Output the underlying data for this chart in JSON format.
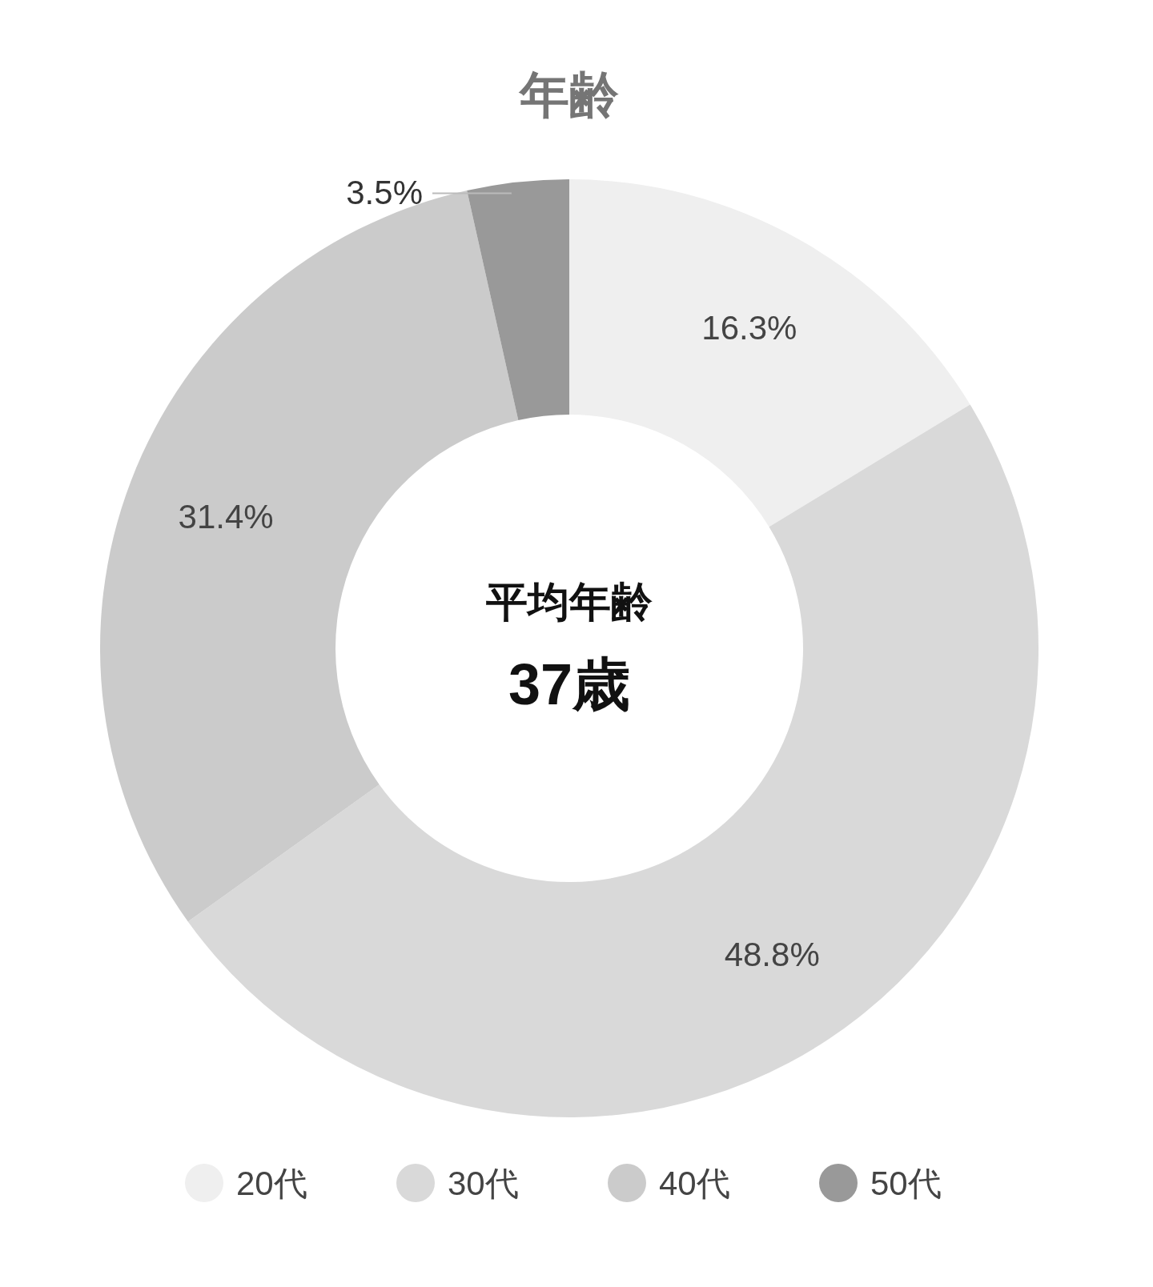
{
  "chart_data": {
    "type": "donut",
    "title": "年齢",
    "categories": [
      "20代",
      "30代",
      "40代",
      "50代"
    ],
    "values": [
      16.3,
      48.8,
      31.4,
      3.5
    ],
    "colors": [
      "#efefef",
      "#d9d9d9",
      "#cbcbcb",
      "#999999"
    ],
    "value_labels": [
      "16.3%",
      "48.8%",
      "31.4%",
      "3.5%"
    ],
    "legend": "bottom",
    "annotations": [
      "平均年齢",
      "37歳"
    ]
  }
}
